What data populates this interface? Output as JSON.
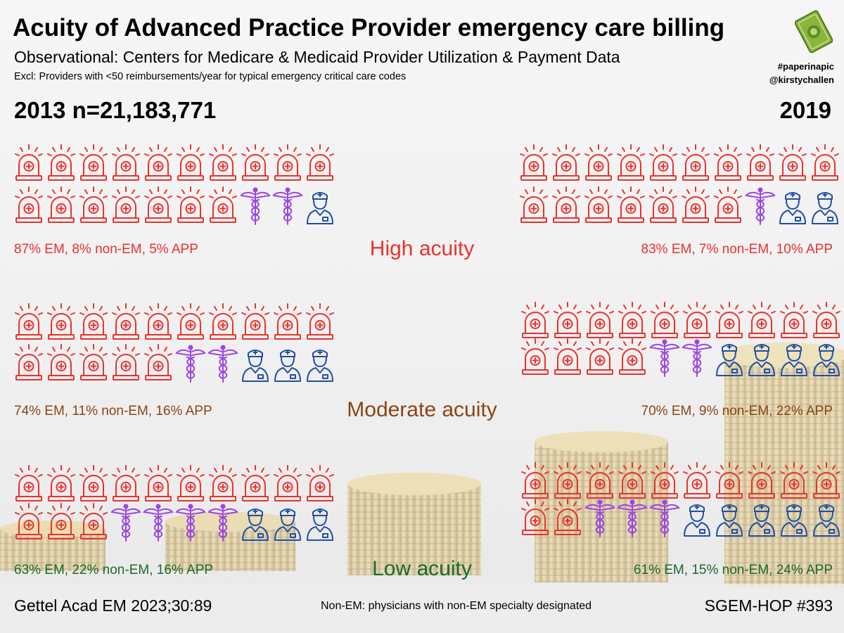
{
  "header": {
    "title": "Acuity of Advanced Practice Provider emergency care billing",
    "subtitle": "Observational: Centers for Medicare & Medicaid Provider Utilization & Payment Data",
    "exclusion": "Excl: Providers with <50 reimbursements/year for typical emergency critical care codes",
    "hashtag": "#paperinapic",
    "handle": "@kirstychallen",
    "logo_icon": "money-bill-icon"
  },
  "years": {
    "left": "2013 n=21,183,771",
    "right": "2019"
  },
  "colors": {
    "em": "#e8322e",
    "non_em": "#9b46e0",
    "app": "#1f4fa6",
    "high": "#e8322e",
    "moderate": "#8b4513",
    "low": "#1a6b2d"
  },
  "legend_icons": {
    "em": "emergency-light-icon",
    "non_em": "caduceus-icon",
    "app": "provider-icon"
  },
  "sections": [
    {
      "key": "high",
      "label": "High acuity",
      "left": {
        "stat": "87% EM, 8% non-EM, 5% APP",
        "em": 17,
        "non_em": 2,
        "app": 1
      },
      "right": {
        "stat": "83% EM, 7% non-EM, 10% APP",
        "em": 17,
        "non_em": 1,
        "app": 2
      }
    },
    {
      "key": "moderate",
      "label": "Moderate acuity",
      "left": {
        "stat": "74% EM, 11% non-EM, 16% APP",
        "em": 15,
        "non_em": 2,
        "app": 3
      },
      "right": {
        "stat": "70% EM, 9% non-EM, 22% APP",
        "em": 14,
        "non_em": 2,
        "app": 4
      }
    },
    {
      "key": "low",
      "label": "Low acuity",
      "left": {
        "stat": "63% EM, 22% non-EM, 16% APP",
        "em": 13,
        "non_em": 4,
        "app": 3
      },
      "right": {
        "stat": "61% EM, 15% non-EM, 24% APP",
        "em": 12,
        "non_em": 3,
        "app": 5
      }
    }
  ],
  "footer": {
    "citation": "Gettel Acad EM 2023;30:89",
    "note": "Non-EM: physicians with non-EM specialty designated",
    "series": "SGEM-HOP #393"
  }
}
